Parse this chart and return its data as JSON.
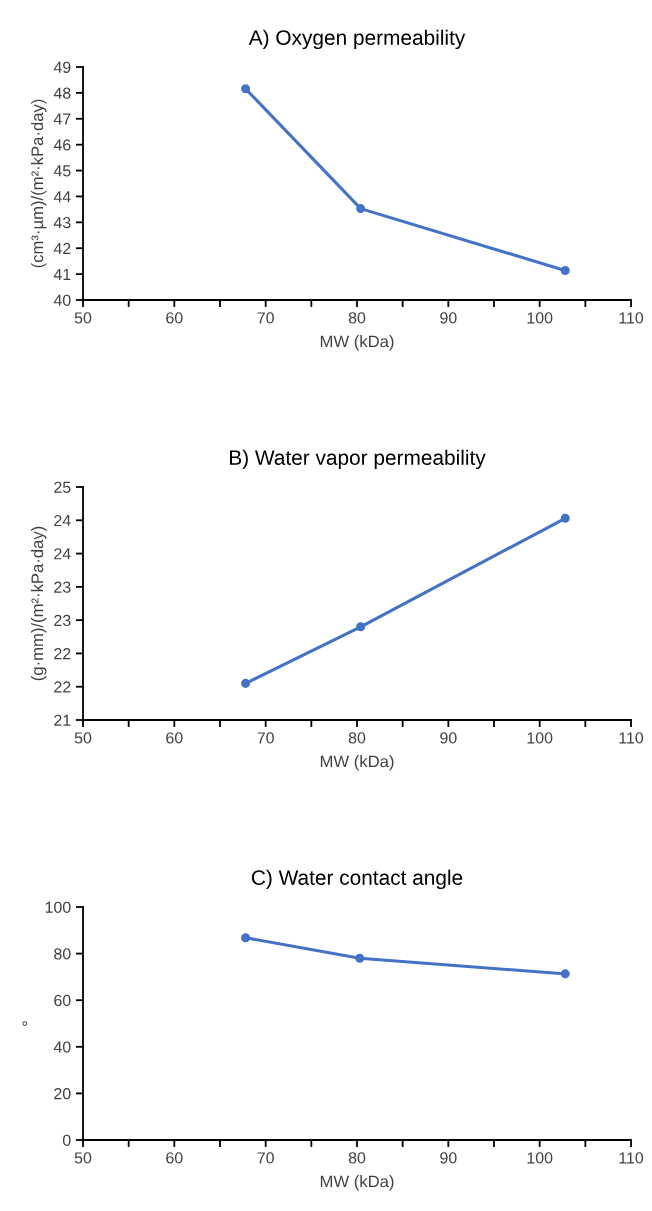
{
  "chart_data": [
    {
      "type": "line",
      "title": "A) Oxygen permeability",
      "xlabel": "MW (kDa)",
      "ylabel": "(cm³·µm)/(m²·kPa·day)",
      "x": [
        67.8,
        80.4,
        102.8
      ],
      "series": [
        {
          "color": "#4472c4",
          "values": [
            48.16,
            43.53,
            41.14
          ]
        }
      ],
      "xlim": [
        50,
        110
      ],
      "xticks": [
        50,
        {
          "value": 55,
          "label": null
        },
        60,
        {
          "value": 65,
          "label": null
        },
        70,
        {
          "value": 75,
          "label": null
        },
        80,
        {
          "value": 85,
          "label": null
        },
        90,
        {
          "value": 95,
          "label": null
        },
        100,
        {
          "value": 105,
          "label": null
        },
        110
      ],
      "ylim": [
        40,
        49
      ],
      "yticks": [
        40,
        41,
        42,
        43,
        44,
        45,
        46,
        47,
        48,
        49
      ],
      "marker": "circle",
      "grid": false,
      "legend": false
    },
    {
      "type": "line",
      "title": "B) Water vapor permeability",
      "xlabel": "MW (kDa)",
      "ylabel": "(g·mm)/(m²·kPa·day)",
      "x": [
        67.8,
        80.4,
        102.8
      ],
      "series": [
        {
          "color": "#4472c4",
          "values": [
            21.55,
            22.4,
            24.03
          ]
        }
      ],
      "xlim": [
        50,
        110
      ],
      "xticks": [
        50,
        {
          "value": 55,
          "label": null
        },
        60,
        {
          "value": 65,
          "label": null
        },
        70,
        {
          "value": 75,
          "label": null
        },
        80,
        {
          "value": 85,
          "label": null
        },
        90,
        {
          "value": 95,
          "label": null
        },
        100,
        {
          "value": 105,
          "label": null
        },
        110
      ],
      "ylim": [
        21,
        24.5
      ],
      "yticks": [
        21,
        {
          "value": 21.5,
          "label": "22"
        },
        22,
        {
          "value": 22.5,
          "label": "23"
        },
        23,
        {
          "value": 23.5,
          "label": "24"
        },
        24,
        {
          "value": 24.5,
          "label": "25"
        }
      ],
      "marker": "circle",
      "grid": false,
      "legend": false
    },
    {
      "type": "line",
      "title": "C) Water contact angle",
      "xlabel": "MW (kDa)",
      "ylabel": "°",
      "x": [
        67.8,
        80.3,
        102.8
      ],
      "series": [
        {
          "color": "#4472c4",
          "values": [
            86.8,
            78.0,
            71.3
          ]
        }
      ],
      "xlim": [
        50,
        110
      ],
      "xticks": [
        50,
        {
          "value": 55,
          "label": null
        },
        60,
        {
          "value": 65,
          "label": null
        },
        70,
        {
          "value": 75,
          "label": null
        },
        80,
        {
          "value": 85,
          "label": null
        },
        90,
        {
          "value": 95,
          "label": null
        },
        100,
        {
          "value": 105,
          "label": null
        },
        110
      ],
      "ylim": [
        0,
        100
      ],
      "yticks": [
        0,
        20,
        40,
        60,
        80,
        100
      ],
      "marker": "circle",
      "grid": false,
      "legend": false
    }
  ]
}
